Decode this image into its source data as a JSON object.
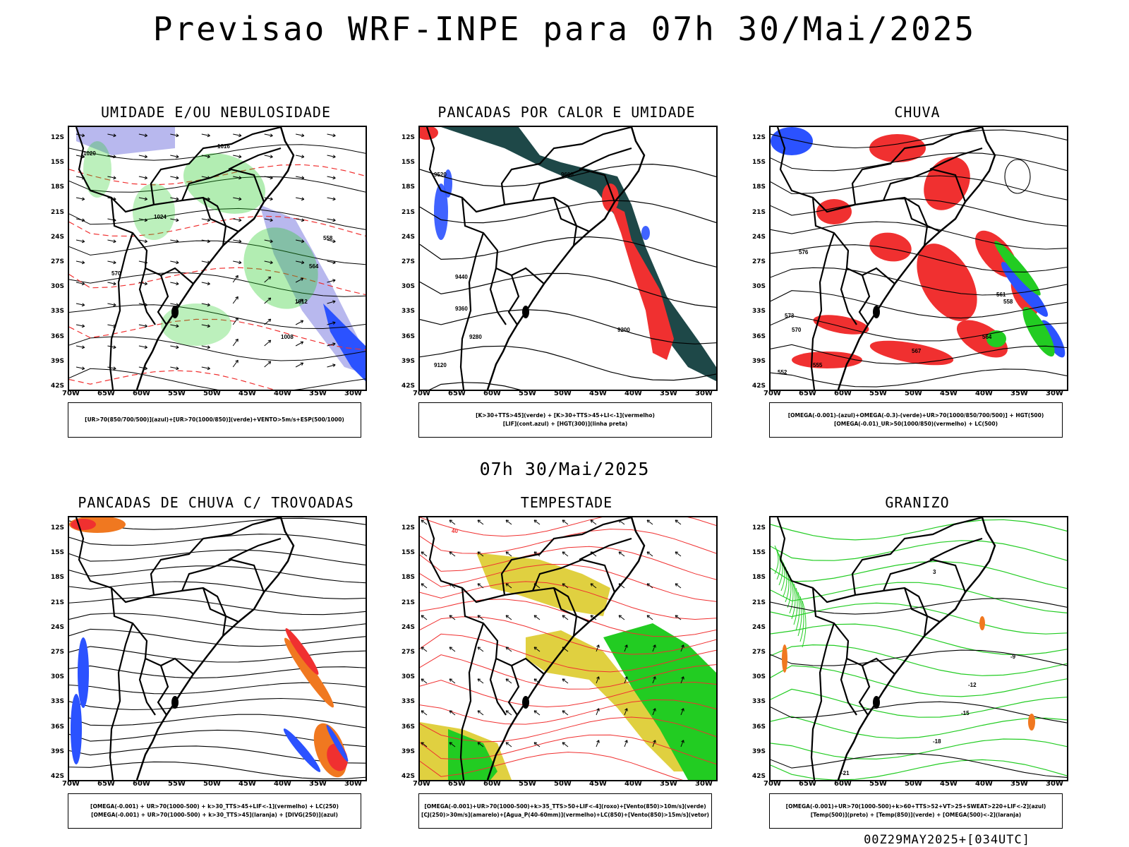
{
  "title": "Previsao WRF-INPE  para 07h 30/Mai/2025",
  "subtitle": "07h 30/Mai/2025",
  "footer": "00Z29MAY2025+[034UTC]",
  "lat_labels": [
    "12S",
    "15S",
    "18S",
    "21S",
    "24S",
    "27S",
    "30S",
    "33S",
    "36S",
    "39S",
    "42S"
  ],
  "lon_labels": [
    "70W",
    "65W",
    "60W",
    "55W",
    "50W",
    "45W",
    "40W",
    "35W",
    "30W"
  ],
  "colors": {
    "blue": "#2b52ff",
    "green": "#22cc22",
    "red": "#f03030",
    "orange": "#f07820",
    "yellow": "#e0d040",
    "darkteal": "#1e4848",
    "lavender": "#b8b8ee"
  },
  "panels": [
    {
      "title": "UMIDADE E/OU NEBULOSIDADE",
      "legend": [
        "[UR>70(850/700/500)](azul)+[UR>70(1000/850)](verde)+VENTO>5m/s+ESP(500/1000)"
      ],
      "labels": [
        "1020",
        "1024",
        "1016",
        "1008",
        "1012",
        "570",
        "558",
        "564"
      ]
    },
    {
      "title": "PANCADAS POR CALOR E UMIDADE",
      "legend": [
        "[K>30+TTS>45](verde)  +  [K>30+TTS>45+LI<-1](vermelho)",
        "[LIF](cont.azul)  +  [HGT(300)](linha preta)"
      ],
      "labels": [
        "9520",
        "9600",
        "9440",
        "9360",
        "9280",
        "9200",
        "9120"
      ]
    },
    {
      "title": "CHUVA",
      "legend": [
        "[OMEGA(-0.001)-(azul)+OMEGA(-0.3)-(verde)+UR>70(1000/850/700/500)]  +  HGT(500)",
        "[OMEGA(-0.01)_UR>50(1000/850)(vermelho)  +  LC(500)"
      ],
      "labels": [
        "576",
        "573",
        "570",
        "567",
        "564",
        "561",
        "558",
        "555",
        "552"
      ]
    },
    {
      "title": "PANCADAS DE CHUVA C/ TROVOADAS",
      "legend": [
        "[OMEGA(-0.001)  +  UR>70(1000-500)  +  k>30_TTS>45+LIF<-1](vermelho)  +  LC(250)",
        "[OMEGA(-0.001)  +  UR>70(1000-500)  +  k>30_TTS>45](laranja)  +  [DIVG(250)](azul)"
      ],
      "labels": []
    },
    {
      "title": "TEMPESTADE",
      "legend": [
        "[OMEGA(-0.001)+UR>70(1000-500)+k>35_TTS>50+LIF<-4](roxo)+[Vento(850)>10m/s](verde)",
        "[CJ(250)>30m/s](amarelo)+[Agua_P(40-60mm)](vermelho)+LC(850)+[Vento(850)>15m/s](vetor)"
      ],
      "labels": [
        "40"
      ]
    },
    {
      "title": "GRANIZO",
      "legend": [
        "[OMEGA(-0.001)+UR>70(1000-500)+k>60+TTS>52+VT>25+SWEAT>220+LIF<-2](azul)",
        "[Temp(500)](preto)  +  [Temp(850)](verde)  +  [OMEGA(500)<-2](laranja)"
      ],
      "labels": [
        "-12",
        "-15",
        "-18",
        "-21",
        "-9",
        "3"
      ]
    }
  ]
}
